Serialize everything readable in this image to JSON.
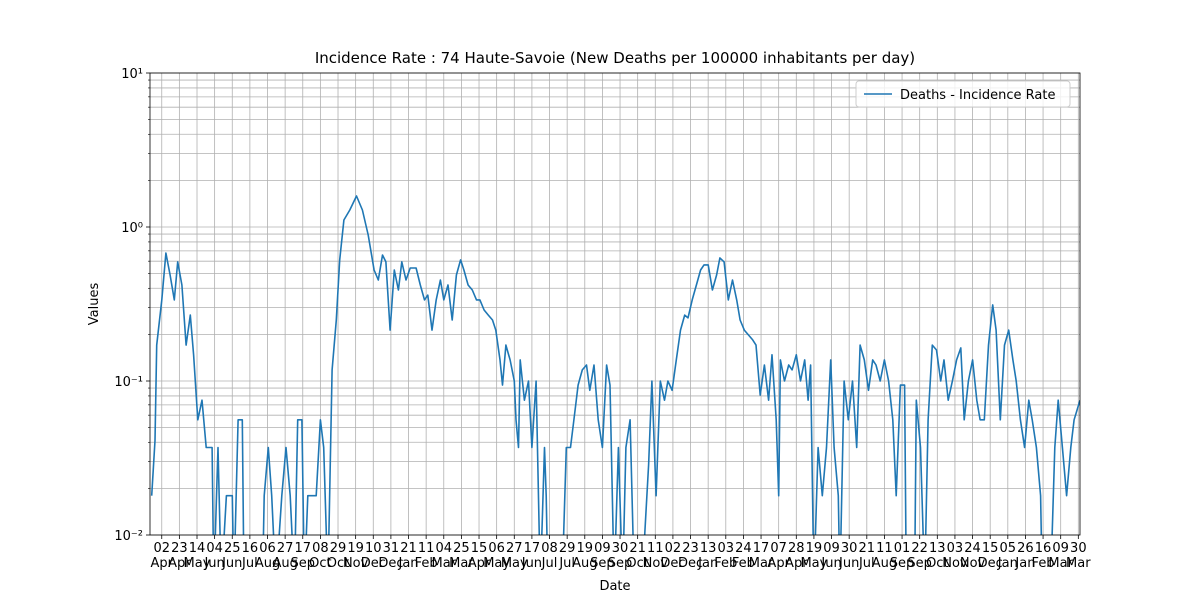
{
  "chart_data": {
    "type": "line",
    "title": "Incidence Rate : 74 Haute-Savoie (New Deaths per 100000 inhabitants per day)",
    "xlabel": "Date",
    "ylabel": "Values",
    "log_y": true,
    "grid": true,
    "minor_grid": true,
    "legend": "upper right",
    "xlim": [
      0,
      1108
    ],
    "ylim": [
      0.01,
      10
    ],
    "yticks": [
      {
        "value": 0.01,
        "label": "10⁻²"
      },
      {
        "value": 0.1,
        "label": "10⁻¹"
      },
      {
        "value": 1,
        "label": "10⁰"
      },
      {
        "value": 10,
        "label": "10¹"
      }
    ],
    "xticks": [
      {
        "value": 14,
        "label": "02\nApr"
      },
      {
        "value": 35,
        "label": "23\nApr"
      },
      {
        "value": 56,
        "label": "14\nMay"
      },
      {
        "value": 77,
        "label": "04\nJun"
      },
      {
        "value": 98,
        "label": "25\nJun"
      },
      {
        "value": 119,
        "label": "16\nJul"
      },
      {
        "value": 140,
        "label": "06\nAug"
      },
      {
        "value": 161,
        "label": "27\nAug"
      },
      {
        "value": 182,
        "label": "17\nSep"
      },
      {
        "value": 203,
        "label": "08\nOct"
      },
      {
        "value": 224,
        "label": "29\nOct"
      },
      {
        "value": 245,
        "label": "19\nNov"
      },
      {
        "value": 266,
        "label": "10\nDec"
      },
      {
        "value": 287,
        "label": "31\nDec"
      },
      {
        "value": 308,
        "label": "21\nJan"
      },
      {
        "value": 329,
        "label": "11\nFeb"
      },
      {
        "value": 350,
        "label": "04\nMar"
      },
      {
        "value": 371,
        "label": "25\nMar"
      },
      {
        "value": 392,
        "label": "15\nApr"
      },
      {
        "value": 413,
        "label": "06\nMay"
      },
      {
        "value": 434,
        "label": "27\nMay"
      },
      {
        "value": 455,
        "label": "17\nJun"
      },
      {
        "value": 476,
        "label": "08\nJul"
      },
      {
        "value": 497,
        "label": "29\nJul"
      },
      {
        "value": 518,
        "label": "19\nAug"
      },
      {
        "value": 539,
        "label": "09\nSep"
      },
      {
        "value": 560,
        "label": "30\nSep"
      },
      {
        "value": 581,
        "label": "21\nOct"
      },
      {
        "value": 602,
        "label": "11\nNov"
      },
      {
        "value": 623,
        "label": "02\nDec"
      },
      {
        "value": 644,
        "label": "23\nDec"
      },
      {
        "value": 665,
        "label": "13\nJan"
      },
      {
        "value": 686,
        "label": "03\nFeb"
      },
      {
        "value": 707,
        "label": "24\nFeb"
      },
      {
        "value": 728,
        "label": "17\nMar"
      },
      {
        "value": 749,
        "label": "07\nApr"
      },
      {
        "value": 770,
        "label": "28\nApr"
      },
      {
        "value": 791,
        "label": "19\nMay"
      },
      {
        "value": 812,
        "label": "09\nJun"
      },
      {
        "value": 833,
        "label": "30\nJun"
      },
      {
        "value": 854,
        "label": "21\nJul"
      },
      {
        "value": 875,
        "label": "11\nAug"
      },
      {
        "value": 896,
        "label": "01\nSep"
      },
      {
        "value": 917,
        "label": "22\nSep"
      },
      {
        "value": 938,
        "label": "13\nOct"
      },
      {
        "value": 959,
        "label": "03\nNov"
      },
      {
        "value": 980,
        "label": "24\nNov"
      },
      {
        "value": 1001,
        "label": "15\nDec"
      },
      {
        "value": 1022,
        "label": "05\nJan"
      },
      {
        "value": 1043,
        "label": "26\nJan"
      },
      {
        "value": 1064,
        "label": "16\nFeb"
      },
      {
        "value": 1085,
        "label": "09\nMar"
      },
      {
        "value": 1106,
        "label": "30\nMar"
      }
    ],
    "x": [
      2,
      6,
      8,
      14,
      19,
      24,
      29,
      33,
      38,
      43,
      48,
      52,
      57,
      62,
      67,
      74,
      76,
      81,
      85,
      91,
      98,
      100,
      105,
      110,
      112,
      134,
      136,
      141,
      145,
      150,
      157,
      162,
      167,
      172,
      176,
      181,
      184,
      188,
      198,
      203,
      207,
      212,
      217,
      222,
      226,
      231,
      238,
      246,
      253,
      260,
      267,
      272,
      277,
      281,
      286,
      291,
      296,
      300,
      305,
      310,
      317,
      322,
      327,
      331,
      336,
      341,
      346,
      350,
      355,
      360,
      365,
      370,
      374,
      379,
      384,
      389,
      393,
      398,
      403,
      408,
      412,
      417,
      420,
      424,
      429,
      434,
      436,
      439,
      441,
      446,
      451,
      455,
      460,
      465,
      470,
      472,
      474,
      491,
      496,
      501,
      505,
      510,
      515,
      520,
      524,
      529,
      534,
      539,
      544,
      548,
      553,
      558,
      563,
      567,
      572,
      577,
      586,
      594,
      598,
      603,
      608,
      613,
      617,
      622,
      627,
      632,
      637,
      641,
      646,
      651,
      656,
      660,
      665,
      670,
      675,
      679,
      684,
      689,
      694,
      699,
      703,
      708,
      713,
      718,
      722,
      727,
      732,
      737,
      741,
      746,
      749,
      751,
      756,
      761,
      765,
      770,
      775,
      780,
      784,
      787,
      791,
      796,
      801,
      806,
      811,
      815,
      820,
      822,
      827,
      832,
      837,
      842,
      846,
      851,
      856,
      861,
      865,
      870,
      875,
      880,
      885,
      889,
      894,
      899,
      901,
      911,
      913,
      918,
      923,
      927,
      932,
      937,
      942,
      946,
      951,
      956,
      961,
      966,
      970,
      975,
      980,
      985,
      989,
      994,
      999,
      1004,
      1008,
      1013,
      1018,
      1023,
      1028,
      1032,
      1037,
      1042,
      1047,
      1051,
      1056,
      1061,
      1063,
      1073,
      1078,
      1082,
      1087,
      1092,
      1097,
      1101,
      1108
    ],
    "series": [
      {
        "name": "Deaths - Incidence Rate",
        "color": "#1f77b4",
        "values": [
          0.018,
          0.041,
          0.171,
          0.336,
          0.678,
          0.488,
          0.336,
          0.593,
          0.42,
          0.171,
          0.268,
          0.148,
          0.056,
          0.075,
          0.037,
          0.037,
          0,
          0.037,
          0,
          0.018,
          0.018,
          0,
          0.056,
          0.056,
          0,
          0,
          0.018,
          0.037,
          0.018,
          0,
          0.018,
          0.037,
          0.018,
          0,
          0.056,
          0.056,
          0,
          0.018,
          0.018,
          0.056,
          0.037,
          0,
          0.118,
          0.249,
          0.611,
          1.11,
          1.29,
          1.59,
          1.29,
          0.887,
          0.526,
          0.453,
          0.658,
          0.593,
          0.214,
          0.526,
          0.39,
          0.593,
          0.453,
          0.542,
          0.542,
          0.42,
          0.336,
          0.361,
          0.214,
          0.336,
          0.453,
          0.336,
          0.42,
          0.249,
          0.488,
          0.611,
          0.526,
          0.42,
          0.39,
          0.336,
          0.336,
          0.289,
          0.268,
          0.249,
          0.214,
          0.137,
          0.094,
          0.171,
          0.137,
          0.1,
          0.056,
          0.037,
          0.137,
          0.075,
          0.1,
          0.037,
          0.1,
          0,
          0.037,
          0.018,
          0,
          0,
          0.037,
          0.037,
          0.056,
          0.094,
          0.118,
          0.127,
          0.087,
          0.127,
          0.056,
          0.037,
          0.127,
          0.094,
          0,
          0.037,
          0,
          0.037,
          0.056,
          0,
          0,
          0.0285,
          0.1,
          0.018,
          0.1,
          0.075,
          0.1,
          0.087,
          0.137,
          0.214,
          0.268,
          0.257,
          0.336,
          0.42,
          0.526,
          0.567,
          0.567,
          0.39,
          0.488,
          0.63,
          0.593,
          0.336,
          0.453,
          0.336,
          0.249,
          0.214,
          0.199,
          0.185,
          0.171,
          0.081,
          0.127,
          0.075,
          0.148,
          0.056,
          0.018,
          0.137,
          0.1,
          0.127,
          0.118,
          0.148,
          0.1,
          0.137,
          0.075,
          0.127,
          0,
          0.037,
          0.018,
          0.037,
          0.137,
          0.037,
          0.018,
          0,
          0.1,
          0.056,
          0.1,
          0.037,
          0.171,
          0.137,
          0.087,
          0.137,
          0.127,
          0.1,
          0.137,
          0.1,
          0.056,
          0.018,
          0.094,
          0.094,
          0,
          0,
          0.075,
          0.037,
          0,
          0.056,
          0.171,
          0.159,
          0.1,
          0.137,
          0.075,
          0.1,
          0.137,
          0.164,
          0.056,
          0.1,
          0.137,
          0.075,
          0.056,
          0.056,
          0.171,
          0.312,
          0.214,
          0.056,
          0.171,
          0.214,
          0.137,
          0.1,
          0.056,
          0.037,
          0.075,
          0.056,
          0.037,
          0.018,
          0,
          0,
          0.037,
          0.075,
          0.037,
          0.018,
          0.037,
          0.056,
          0.075
        ]
      }
    ]
  }
}
